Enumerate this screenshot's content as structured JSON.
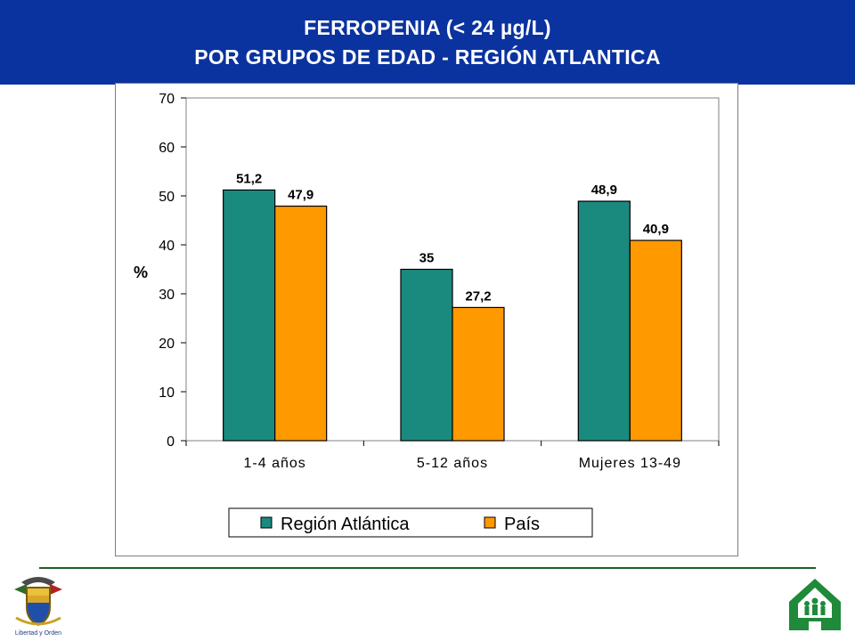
{
  "header": {
    "title_line1": "FERROPENIA  (< 24 µg/L)",
    "title_line2": "POR GRUPOS DE EDAD -  REGIÓN ATLANTICA",
    "background_color": "#0a33a0"
  },
  "footer": {
    "seal_caption": "Libertad y Orden",
    "emblem_icon": "family-house-icon",
    "divider_color": "#1f5e2a"
  },
  "chart_data": {
    "type": "bar",
    "title": "",
    "xlabel": "",
    "ylabel": "%",
    "ylim": [
      0,
      70
    ],
    "yticks": [
      0,
      10,
      20,
      30,
      40,
      50,
      60,
      70
    ],
    "grid": false,
    "legend_position": "bottom",
    "categories": [
      "1-4 años",
      "5-12 años",
      "Mujeres 13-49"
    ],
    "series": [
      {
        "name": "Región Atlántica",
        "values": [
          51.2,
          35,
          48.9
        ],
        "labels": [
          "51,2",
          "35",
          "48,9"
        ],
        "color": "#1b8a7e"
      },
      {
        "name": "País",
        "values": [
          47.9,
          27.2,
          40.9
        ],
        "labels": [
          "47,9",
          "27,2",
          "40,9"
        ],
        "color": "#ff9900"
      }
    ]
  }
}
